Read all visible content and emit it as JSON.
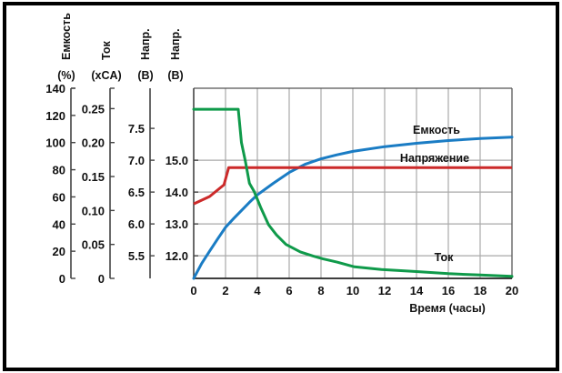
{
  "chart_data": {
    "type": "line",
    "title": "",
    "xlabel": "Время (часы)",
    "xlim": [
      0,
      20
    ],
    "x_ticks": [
      0,
      2,
      4,
      6,
      8,
      10,
      12,
      14,
      16,
      18,
      20
    ],
    "grid": true,
    "axes": [
      {
        "id": "capacity",
        "name": "Емкость",
        "unit": "(%)",
        "lim": [
          0,
          140
        ],
        "ticks": [
          "0",
          "20",
          "40",
          "60",
          "80",
          "100",
          "120",
          "140"
        ],
        "tick_values": [
          0,
          20,
          40,
          60,
          80,
          100,
          120,
          140
        ]
      },
      {
        "id": "current",
        "name": "Ток",
        "unit": "(xCA)",
        "lim": [
          0,
          0.28
        ],
        "ticks": [
          "0",
          "0.05",
          "0.10",
          "0.15",
          "0.20",
          "0.25"
        ],
        "tick_values": [
          0,
          0.05,
          0.1,
          0.15,
          0.2,
          0.25
        ]
      },
      {
        "id": "volt6",
        "name": "Напр.",
        "unit": "(В)",
        "lim": [
          5.145,
          8.13
        ],
        "ticks": [
          "5.5",
          "6.0",
          "6.5",
          "7.0",
          "7.5"
        ],
        "tick_values": [
          5.5,
          6.0,
          6.5,
          7.0,
          7.5
        ]
      },
      {
        "id": "volt12",
        "name": "Напр.",
        "unit": "(В)",
        "lim": [
          11.29,
          17.26
        ],
        "ticks": [
          "12.0",
          "13.0",
          "14.0",
          "15.0"
        ],
        "tick_values": [
          12.0,
          13.0,
          14.0,
          15.0
        ]
      }
    ],
    "series": [
      {
        "name": "Емкость",
        "axis": "capacity",
        "color": "#1a7cc4",
        "x": [
          0,
          0.5,
          1,
          1.5,
          2,
          2.5,
          3,
          3.5,
          4,
          5,
          6,
          7,
          8,
          9,
          10,
          12,
          14,
          16,
          18,
          20
        ],
        "values": [
          0,
          11,
          20,
          29,
          37.6,
          44,
          50,
          56,
          61.5,
          70,
          78,
          84,
          88,
          91,
          93.5,
          97,
          99.5,
          101.5,
          103,
          104
        ]
      },
      {
        "name": "Напряжение",
        "axis": "volt12",
        "color": "#cc2a2a",
        "x": [
          0,
          1,
          1.9,
          2.2,
          20
        ],
        "values": [
          13.63,
          13.86,
          14.23,
          14.77,
          14.77
        ]
      },
      {
        "name": "Ток",
        "axis": "current",
        "color": "#0f9a4a",
        "x": [
          0,
          2.8,
          3.0,
          3.25,
          3.5,
          3.8,
          4.2,
          4.7,
          5.2,
          5.8,
          6.7,
          7.5,
          8.1,
          9,
          10.1,
          11.8,
          14,
          16,
          18,
          20
        ],
        "values": [
          0.249,
          0.249,
          0.2,
          0.172,
          0.14,
          0.128,
          0.105,
          0.079,
          0.064,
          0.05,
          0.039,
          0.033,
          0.029,
          0.024,
          0.017,
          0.013,
          0.01,
          0.007,
          0.005,
          0.003
        ]
      }
    ],
    "annotations": [
      {
        "text": "Емкость",
        "series": "Емкость",
        "x": 15.6
      },
      {
        "text": "Напряжение",
        "series": "Напряжение",
        "x": 14.3
      },
      {
        "text": "Ток",
        "series": "Ток",
        "x": 15.5
      }
    ]
  }
}
